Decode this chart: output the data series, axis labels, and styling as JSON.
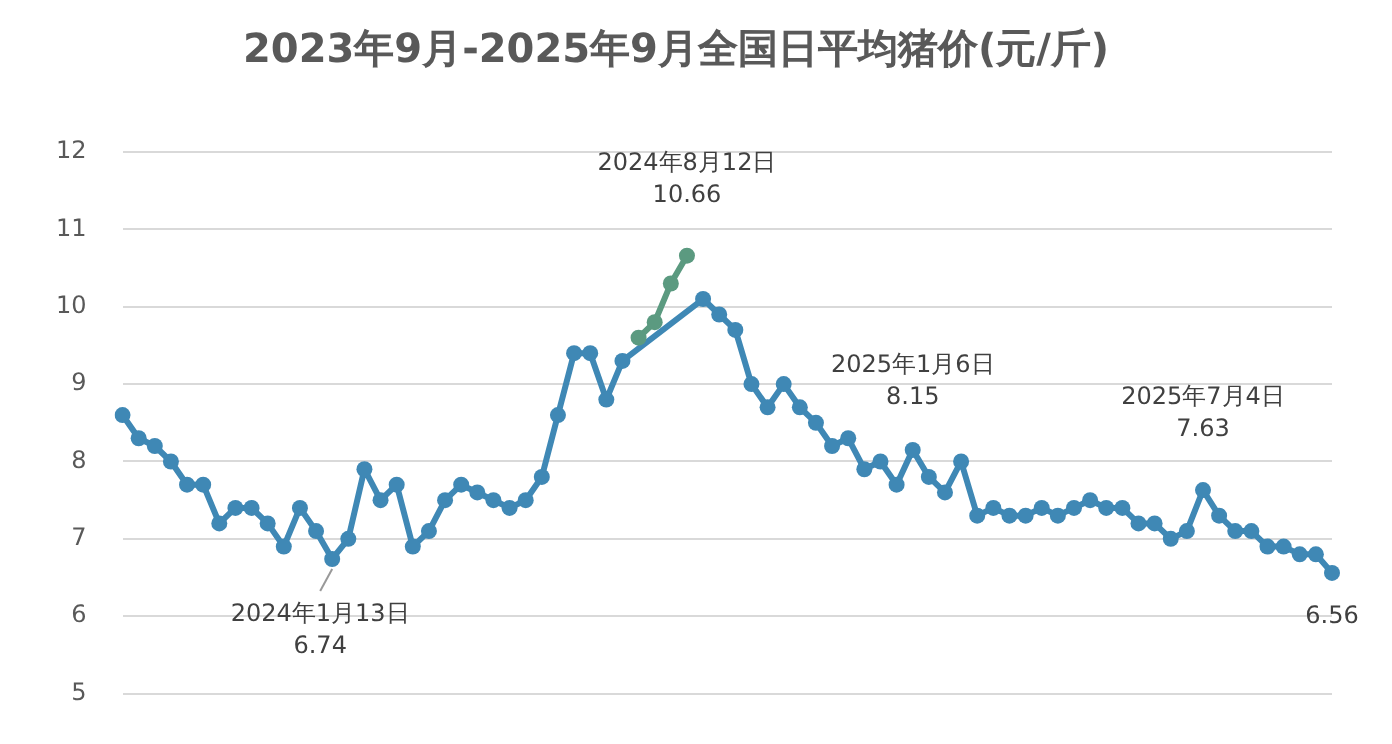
{
  "chart_data": {
    "type": "line",
    "title": "2023年9月-2025年9月全国日平均猪价(元/斤)",
    "categories": [
      null,
      null,
      null,
      null,
      null,
      null,
      null,
      null,
      null,
      null,
      null,
      null,
      null,
      null,
      null,
      null,
      null,
      null,
      null,
      null,
      null,
      null,
      null,
      null,
      null,
      null,
      null,
      null,
      null,
      null,
      null,
      null,
      null,
      null,
      null,
      null,
      null,
      null,
      null,
      null,
      null,
      null,
      null,
      null,
      null,
      null,
      null,
      null,
      null,
      null,
      null,
      null,
      null,
      null,
      null,
      null,
      null,
      null,
      null,
      null,
      null,
      null,
      null,
      null,
      null,
      null,
      null,
      null,
      null,
      null,
      null,
      null,
      null,
      null,
      null,
      null
    ],
    "ylim": [
      5,
      12
    ],
    "yticks": [
      5,
      6,
      7,
      8,
      9,
      10,
      11,
      12
    ],
    "grid": "y",
    "tick_labels": "y",
    "legend": false,
    "marker": "circle",
    "series": [
      {
        "color": "#3f88b5",
        "values": [
          8.6,
          8.3,
          8.2,
          8.0,
          7.7,
          7.7,
          7.2,
          7.4,
          7.4,
          7.2,
          6.9,
          7.4,
          7.1,
          6.74,
          7.0,
          7.9,
          7.5,
          7.7,
          6.9,
          7.1,
          7.5,
          7.7,
          7.6,
          7.5,
          7.4,
          7.5,
          7.8,
          8.6,
          9.4,
          9.4,
          8.8,
          9.3,
          null,
          null,
          null,
          null,
          10.1,
          9.9,
          9.7,
          9.0,
          8.7,
          9.0,
          8.7,
          8.5,
          8.2,
          8.3,
          7.9,
          8.0,
          7.7,
          8.15,
          7.8,
          7.6,
          8.0,
          7.3,
          7.4,
          7.3,
          7.3,
          7.4,
          7.3,
          7.4,
          7.5,
          7.4,
          7.4,
          7.2,
          7.2,
          7.0,
          7.1,
          7.63,
          7.3,
          7.1,
          7.1,
          6.9,
          6.9,
          6.8,
          6.8,
          6.56
        ]
      },
      {
        "color": "#5b9a80",
        "values": [
          null,
          null,
          null,
          null,
          null,
          null,
          null,
          null,
          null,
          null,
          null,
          null,
          null,
          null,
          null,
          null,
          null,
          null,
          null,
          null,
          null,
          null,
          null,
          null,
          null,
          null,
          null,
          null,
          null,
          null,
          null,
          null,
          9.6,
          9.8,
          10.3,
          10.66,
          null,
          null,
          null,
          null,
          null,
          null,
          null,
          null,
          null,
          null,
          null,
          null,
          null,
          null,
          null,
          null,
          null,
          null,
          null,
          null,
          null,
          null,
          null,
          null,
          null,
          null,
          null,
          null,
          null,
          null,
          null,
          null,
          null,
          null,
          null,
          null,
          null,
          null,
          null,
          null
        ]
      }
    ],
    "annotations": [
      {
        "text": "2024年1月13日\n6.74",
        "y": 6.74
      },
      {
        "text": "2024年8月12日\n10.66",
        "y": 10.66
      },
      {
        "text": "2025年1月6日\n8.15",
        "y": 8.15
      },
      {
        "text": "2025年7月4日\n7.63",
        "y": 7.63
      },
      {
        "text": "6.56",
        "y": 6.56
      }
    ]
  }
}
